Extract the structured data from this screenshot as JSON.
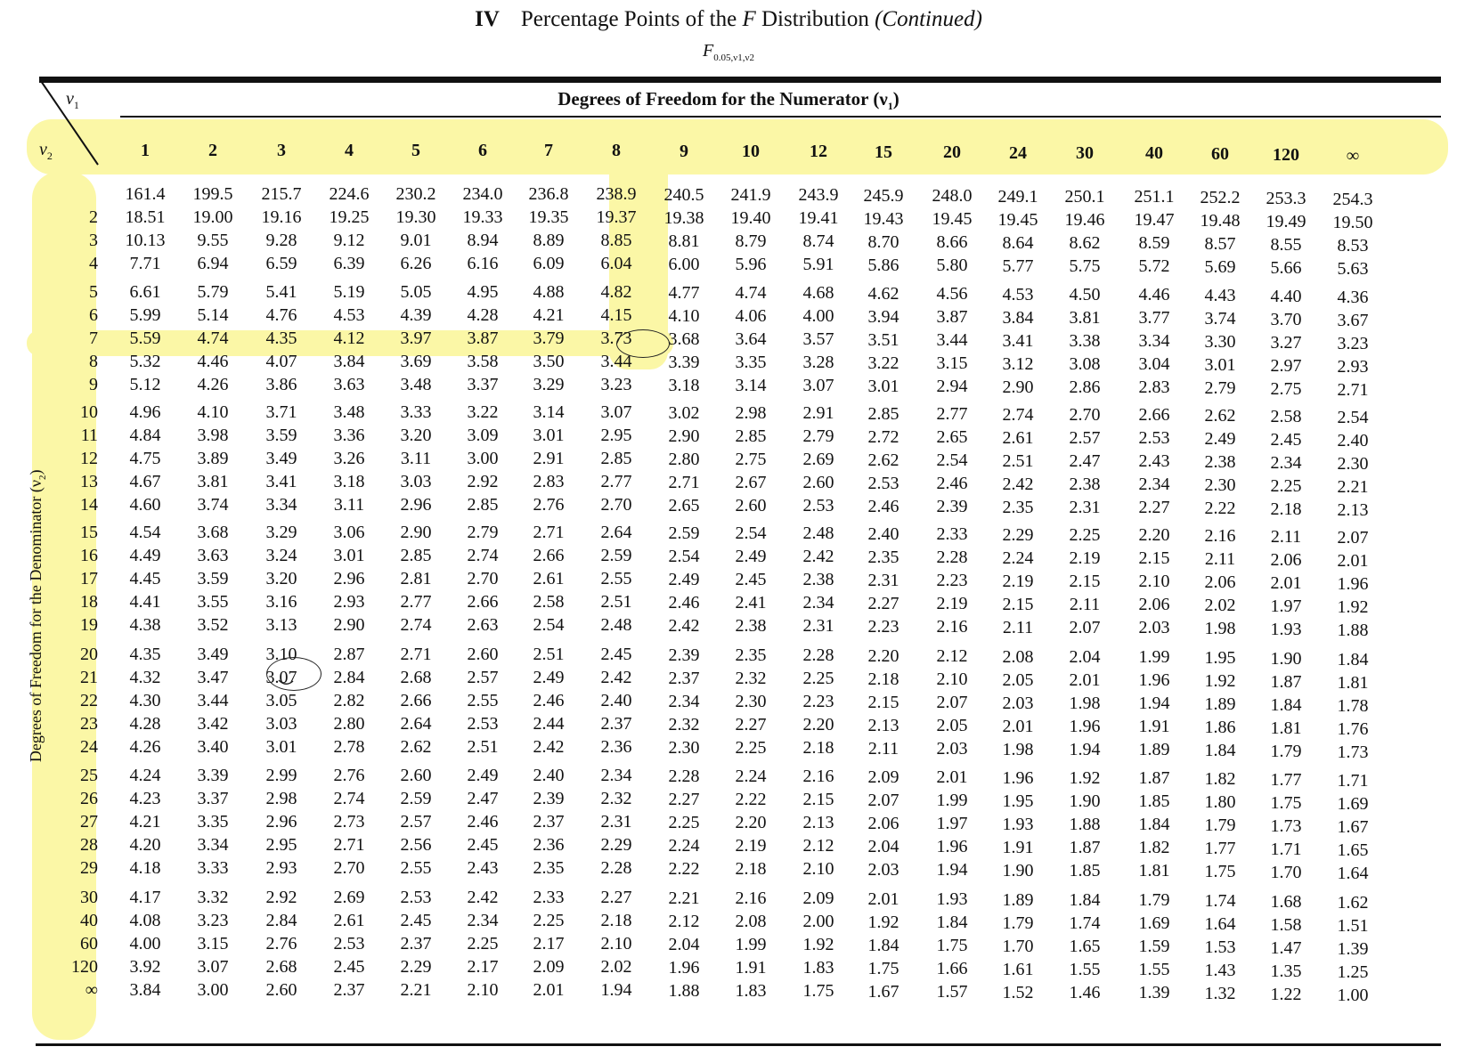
{
  "title": {
    "roman": "IV",
    "text_before": "Percentage Points of the ",
    "italic_f": "F",
    "text_after": " Distribution ",
    "continued": "(Continued)"
  },
  "subtitle": {
    "main": "F",
    "sub": "0.05,ν1,ν2"
  },
  "headers": {
    "nu1": "ν",
    "nu1_sub": "1",
    "nu2": "ν",
    "nu2_sub": "2",
    "numerator": "Degrees of Freedom for the Numerator (ν",
    "numerator_sub": "1",
    "numerator_close": ")",
    "denominator": "Degrees of Freedom for the Denominator (ν",
    "denominator_sub": "2",
    "denominator_close": ")"
  },
  "columns": [
    "1",
    "2",
    "3",
    "4",
    "5",
    "6",
    "7",
    "8",
    "9",
    "10",
    "12",
    "15",
    "20",
    "24",
    "30",
    "40",
    "60",
    "120",
    "∞"
  ],
  "rows": [
    {
      "label": "",
      "values": [
        "161.4",
        "199.5",
        "215.7",
        "224.6",
        "230.2",
        "234.0",
        "236.8",
        "238.9",
        "240.5",
        "241.9",
        "243.9",
        "245.9",
        "248.0",
        "249.1",
        "250.1",
        "251.1",
        "252.2",
        "253.3",
        "254.3"
      ]
    },
    {
      "label": "2",
      "values": [
        "18.51",
        "19.00",
        "19.16",
        "19.25",
        "19.30",
        "19.33",
        "19.35",
        "19.37",
        "19.38",
        "19.40",
        "19.41",
        "19.43",
        "19.45",
        "19.45",
        "19.46",
        "19.47",
        "19.48",
        "19.49",
        "19.50"
      ]
    },
    {
      "label": "3",
      "values": [
        "10.13",
        "9.55",
        "9.28",
        "9.12",
        "9.01",
        "8.94",
        "8.89",
        "8.85",
        "8.81",
        "8.79",
        "8.74",
        "8.70",
        "8.66",
        "8.64",
        "8.62",
        "8.59",
        "8.57",
        "8.55",
        "8.53"
      ]
    },
    {
      "label": "4",
      "values": [
        "7.71",
        "6.94",
        "6.59",
        "6.39",
        "6.26",
        "6.16",
        "6.09",
        "6.04",
        "6.00",
        "5.96",
        "5.91",
        "5.86",
        "5.80",
        "5.77",
        "5.75",
        "5.72",
        "5.69",
        "5.66",
        "5.63"
      ]
    },
    {
      "label": "5",
      "values": [
        "6.61",
        "5.79",
        "5.41",
        "5.19",
        "5.05",
        "4.95",
        "4.88",
        "4.82",
        "4.77",
        "4.74",
        "4.68",
        "4.62",
        "4.56",
        "4.53",
        "4.50",
        "4.46",
        "4.43",
        "4.40",
        "4.36"
      ]
    },
    {
      "label": "6",
      "values": [
        "5.99",
        "5.14",
        "4.76",
        "4.53",
        "4.39",
        "4.28",
        "4.21",
        "4.15",
        "4.10",
        "4.06",
        "4.00",
        "3.94",
        "3.87",
        "3.84",
        "3.81",
        "3.77",
        "3.74",
        "3.70",
        "3.67"
      ]
    },
    {
      "label": "7",
      "values": [
        "5.59",
        "4.74",
        "4.35",
        "4.12",
        "3.97",
        "3.87",
        "3.79",
        "3.73",
        "3.68",
        "3.64",
        "3.57",
        "3.51",
        "3.44",
        "3.41",
        "3.38",
        "3.34",
        "3.30",
        "3.27",
        "3.23"
      ]
    },
    {
      "label": "8",
      "values": [
        "5.32",
        "4.46",
        "4.07",
        "3.84",
        "3.69",
        "3.58",
        "3.50",
        "3.44",
        "3.39",
        "3.35",
        "3.28",
        "3.22",
        "3.15",
        "3.12",
        "3.08",
        "3.04",
        "3.01",
        "2.97",
        "2.93"
      ]
    },
    {
      "label": "9",
      "values": [
        "5.12",
        "4.26",
        "3.86",
        "3.63",
        "3.48",
        "3.37",
        "3.29",
        "3.23",
        "3.18",
        "3.14",
        "3.07",
        "3.01",
        "2.94",
        "2.90",
        "2.86",
        "2.83",
        "2.79",
        "2.75",
        "2.71"
      ]
    },
    {
      "label": "10",
      "values": [
        "4.96",
        "4.10",
        "3.71",
        "3.48",
        "3.33",
        "3.22",
        "3.14",
        "3.07",
        "3.02",
        "2.98",
        "2.91",
        "2.85",
        "2.77",
        "2.74",
        "2.70",
        "2.66",
        "2.62",
        "2.58",
        "2.54"
      ]
    },
    {
      "label": "11",
      "values": [
        "4.84",
        "3.98",
        "3.59",
        "3.36",
        "3.20",
        "3.09",
        "3.01",
        "2.95",
        "2.90",
        "2.85",
        "2.79",
        "2.72",
        "2.65",
        "2.61",
        "2.57",
        "2.53",
        "2.49",
        "2.45",
        "2.40"
      ]
    },
    {
      "label": "12",
      "values": [
        "4.75",
        "3.89",
        "3.49",
        "3.26",
        "3.11",
        "3.00",
        "2.91",
        "2.85",
        "2.80",
        "2.75",
        "2.69",
        "2.62",
        "2.54",
        "2.51",
        "2.47",
        "2.43",
        "2.38",
        "2.34",
        "2.30"
      ]
    },
    {
      "label": "13",
      "values": [
        "4.67",
        "3.81",
        "3.41",
        "3.18",
        "3.03",
        "2.92",
        "2.83",
        "2.77",
        "2.71",
        "2.67",
        "2.60",
        "2.53",
        "2.46",
        "2.42",
        "2.38",
        "2.34",
        "2.30",
        "2.25",
        "2.21"
      ]
    },
    {
      "label": "14",
      "values": [
        "4.60",
        "3.74",
        "3.34",
        "3.11",
        "2.96",
        "2.85",
        "2.76",
        "2.70",
        "2.65",
        "2.60",
        "2.53",
        "2.46",
        "2.39",
        "2.35",
        "2.31",
        "2.27",
        "2.22",
        "2.18",
        "2.13"
      ]
    },
    {
      "label": "15",
      "values": [
        "4.54",
        "3.68",
        "3.29",
        "3.06",
        "2.90",
        "2.79",
        "2.71",
        "2.64",
        "2.59",
        "2.54",
        "2.48",
        "2.40",
        "2.33",
        "2.29",
        "2.25",
        "2.20",
        "2.16",
        "2.11",
        "2.07"
      ]
    },
    {
      "label": "16",
      "values": [
        "4.49",
        "3.63",
        "3.24",
        "3.01",
        "2.85",
        "2.74",
        "2.66",
        "2.59",
        "2.54",
        "2.49",
        "2.42",
        "2.35",
        "2.28",
        "2.24",
        "2.19",
        "2.15",
        "2.11",
        "2.06",
        "2.01"
      ]
    },
    {
      "label": "17",
      "values": [
        "4.45",
        "3.59",
        "3.20",
        "2.96",
        "2.81",
        "2.70",
        "2.61",
        "2.55",
        "2.49",
        "2.45",
        "2.38",
        "2.31",
        "2.23",
        "2.19",
        "2.15",
        "2.10",
        "2.06",
        "2.01",
        "1.96"
      ]
    },
    {
      "label": "18",
      "values": [
        "4.41",
        "3.55",
        "3.16",
        "2.93",
        "2.77",
        "2.66",
        "2.58",
        "2.51",
        "2.46",
        "2.41",
        "2.34",
        "2.27",
        "2.19",
        "2.15",
        "2.11",
        "2.06",
        "2.02",
        "1.97",
        "1.92"
      ]
    },
    {
      "label": "19",
      "values": [
        "4.38",
        "3.52",
        "3.13",
        "2.90",
        "2.74",
        "2.63",
        "2.54",
        "2.48",
        "2.42",
        "2.38",
        "2.31",
        "2.23",
        "2.16",
        "2.11",
        "2.07",
        "2.03",
        "1.98",
        "1.93",
        "1.88"
      ]
    },
    {
      "label": "20",
      "values": [
        "4.35",
        "3.49",
        "3.10",
        "2.87",
        "2.71",
        "2.60",
        "2.51",
        "2.45",
        "2.39",
        "2.35",
        "2.28",
        "2.20",
        "2.12",
        "2.08",
        "2.04",
        "1.99",
        "1.95",
        "1.90",
        "1.84"
      ]
    },
    {
      "label": "21",
      "values": [
        "4.32",
        "3.47",
        "3.07",
        "2.84",
        "2.68",
        "2.57",
        "2.49",
        "2.42",
        "2.37",
        "2.32",
        "2.25",
        "2.18",
        "2.10",
        "2.05",
        "2.01",
        "1.96",
        "1.92",
        "1.87",
        "1.81"
      ]
    },
    {
      "label": "22",
      "values": [
        "4.30",
        "3.44",
        "3.05",
        "2.82",
        "2.66",
        "2.55",
        "2.46",
        "2.40",
        "2.34",
        "2.30",
        "2.23",
        "2.15",
        "2.07",
        "2.03",
        "1.98",
        "1.94",
        "1.89",
        "1.84",
        "1.78"
      ]
    },
    {
      "label": "23",
      "values": [
        "4.28",
        "3.42",
        "3.03",
        "2.80",
        "2.64",
        "2.53",
        "2.44",
        "2.37",
        "2.32",
        "2.27",
        "2.20",
        "2.13",
        "2.05",
        "2.01",
        "1.96",
        "1.91",
        "1.86",
        "1.81",
        "1.76"
      ]
    },
    {
      "label": "24",
      "values": [
        "4.26",
        "3.40",
        "3.01",
        "2.78",
        "2.62",
        "2.51",
        "2.42",
        "2.36",
        "2.30",
        "2.25",
        "2.18",
        "2.11",
        "2.03",
        "1.98",
        "1.94",
        "1.89",
        "1.84",
        "1.79",
        "1.73"
      ]
    },
    {
      "label": "25",
      "values": [
        "4.24",
        "3.39",
        "2.99",
        "2.76",
        "2.60",
        "2.49",
        "2.40",
        "2.34",
        "2.28",
        "2.24",
        "2.16",
        "2.09",
        "2.01",
        "1.96",
        "1.92",
        "1.87",
        "1.82",
        "1.77",
        "1.71"
      ]
    },
    {
      "label": "26",
      "values": [
        "4.23",
        "3.37",
        "2.98",
        "2.74",
        "2.59",
        "2.47",
        "2.39",
        "2.32",
        "2.27",
        "2.22",
        "2.15",
        "2.07",
        "1.99",
        "1.95",
        "1.90",
        "1.85",
        "1.80",
        "1.75",
        "1.69"
      ]
    },
    {
      "label": "27",
      "values": [
        "4.21",
        "3.35",
        "2.96",
        "2.73",
        "2.57",
        "2.46",
        "2.37",
        "2.31",
        "2.25",
        "2.20",
        "2.13",
        "2.06",
        "1.97",
        "1.93",
        "1.88",
        "1.84",
        "1.79",
        "1.73",
        "1.67"
      ]
    },
    {
      "label": "28",
      "values": [
        "4.20",
        "3.34",
        "2.95",
        "2.71",
        "2.56",
        "2.45",
        "2.36",
        "2.29",
        "2.24",
        "2.19",
        "2.12",
        "2.04",
        "1.96",
        "1.91",
        "1.87",
        "1.82",
        "1.77",
        "1.71",
        "1.65"
      ]
    },
    {
      "label": "29",
      "values": [
        "4.18",
        "3.33",
        "2.93",
        "2.70",
        "2.55",
        "2.43",
        "2.35",
        "2.28",
        "2.22",
        "2.18",
        "2.10",
        "2.03",
        "1.94",
        "1.90",
        "1.85",
        "1.81",
        "1.75",
        "1.70",
        "1.64"
      ]
    },
    {
      "label": "30",
      "values": [
        "4.17",
        "3.32",
        "2.92",
        "2.69",
        "2.53",
        "2.42",
        "2.33",
        "2.27",
        "2.21",
        "2.16",
        "2.09",
        "2.01",
        "1.93",
        "1.89",
        "1.84",
        "1.79",
        "1.74",
        "1.68",
        "1.62"
      ]
    },
    {
      "label": "40",
      "values": [
        "4.08",
        "3.23",
        "2.84",
        "2.61",
        "2.45",
        "2.34",
        "2.25",
        "2.18",
        "2.12",
        "2.08",
        "2.00",
        "1.92",
        "1.84",
        "1.79",
        "1.74",
        "1.69",
        "1.64",
        "1.58",
        "1.51"
      ]
    },
    {
      "label": "60",
      "values": [
        "4.00",
        "3.15",
        "2.76",
        "2.53",
        "2.37",
        "2.25",
        "2.17",
        "2.10",
        "2.04",
        "1.99",
        "1.92",
        "1.84",
        "1.75",
        "1.70",
        "1.65",
        "1.59",
        "1.53",
        "1.47",
        "1.39"
      ]
    },
    {
      "label": "120",
      "values": [
        "3.92",
        "3.07",
        "2.68",
        "2.45",
        "2.29",
        "2.17",
        "2.09",
        "2.02",
        "1.96",
        "1.91",
        "1.83",
        "1.75",
        "1.66",
        "1.61",
        "1.55",
        "1.55",
        "1.43",
        "1.35",
        "1.25"
      ]
    },
    {
      "label": "∞",
      "values": [
        "3.84",
        "3.00",
        "2.60",
        "2.37",
        "2.21",
        "2.10",
        "2.01",
        "1.94",
        "1.88",
        "1.83",
        "1.75",
        "1.67",
        "1.57",
        "1.52",
        "1.46",
        "1.39",
        "1.32",
        "1.22",
        "1.00"
      ]
    }
  ],
  "highlight_color": "#fbf7a6",
  "highlighted_column": "8",
  "highlighted_row": "7"
}
